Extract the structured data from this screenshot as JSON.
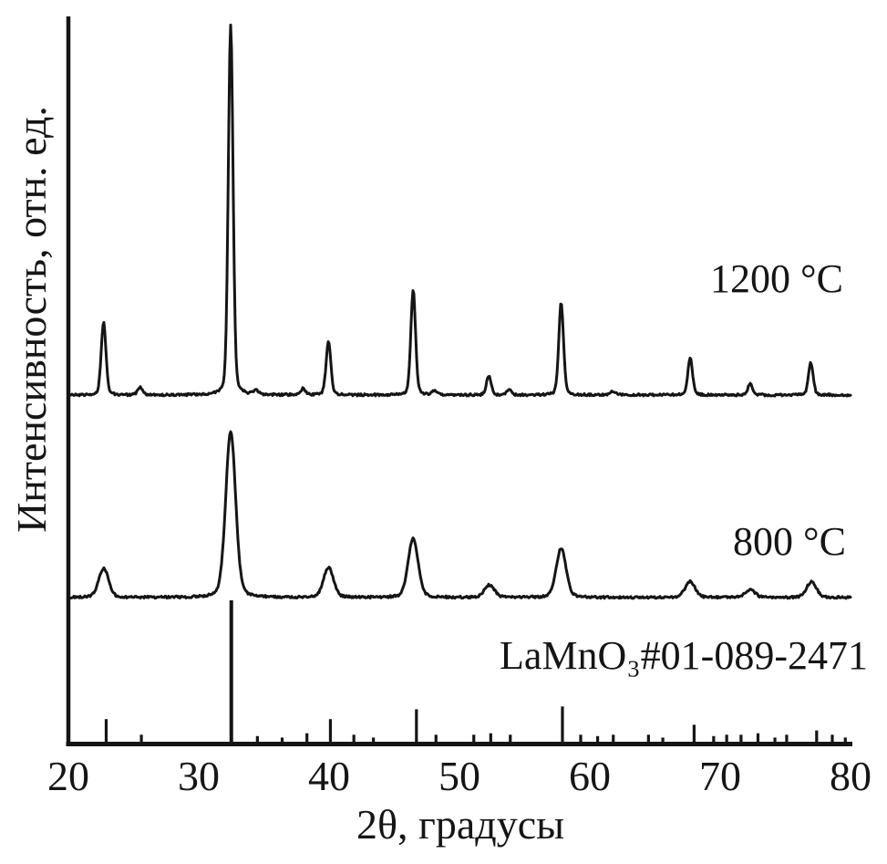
{
  "colors": {
    "background": "#ffffff",
    "ink": "#151515"
  },
  "chart_data": {
    "type": "line",
    "chart_kind": "xrd-powder-diffraction-patterns",
    "title": "",
    "xlabel": "2θ, градусы",
    "ylabel": "Интенсивность, отн. ед.",
    "legend_position": "none",
    "grid": false,
    "x_axis": {
      "min": 20,
      "max": 80,
      "tick_labels": [
        20,
        30,
        40,
        50,
        60,
        70,
        80
      ]
    },
    "y_axis": {
      "units": "отн. ед.",
      "tick_labels": []
    },
    "series": [
      {
        "name": "1200 °C",
        "label": "1200 °C",
        "fwhm_deg": 0.42,
        "intensity_scale": "relative, strongest peak = 1000",
        "peaks": [
          {
            "two_theta": 22.7,
            "intensity": 197
          },
          {
            "two_theta": 25.5,
            "intensity": 22
          },
          {
            "two_theta": 32.45,
            "intensity": 1000
          },
          {
            "two_theta": 34.4,
            "intensity": 12
          },
          {
            "two_theta": 38.0,
            "intensity": 17
          },
          {
            "two_theta": 39.95,
            "intensity": 143
          },
          {
            "two_theta": 46.45,
            "intensity": 283
          },
          {
            "two_theta": 48.1,
            "intensity": 12
          },
          {
            "two_theta": 52.25,
            "intensity": 52
          },
          {
            "two_theta": 53.8,
            "intensity": 15
          },
          {
            "two_theta": 57.8,
            "intensity": 249
          },
          {
            "two_theta": 61.8,
            "intensity": 10
          },
          {
            "two_theta": 67.7,
            "intensity": 99
          },
          {
            "two_theta": 72.3,
            "intensity": 30
          },
          {
            "two_theta": 76.95,
            "intensity": 86
          }
        ]
      },
      {
        "name": "800 °C",
        "label": "800 °C",
        "fwhm_deg": 0.88,
        "intensity_scale": "relative, strongest peak = 1000",
        "peaks": [
          {
            "two_theta": 22.7,
            "intensity": 79
          },
          {
            "two_theta": 32.45,
            "intensity": 448
          },
          {
            "two_theta": 39.95,
            "intensity": 81
          },
          {
            "two_theta": 46.45,
            "intensity": 160
          },
          {
            "two_theta": 52.3,
            "intensity": 34
          },
          {
            "two_theta": 57.8,
            "intensity": 133
          },
          {
            "two_theta": 67.7,
            "intensity": 44
          },
          {
            "two_theta": 72.3,
            "intensity": 20
          },
          {
            "two_theta": 77.0,
            "intensity": 42
          }
        ]
      }
    ],
    "reference": {
      "label": "LaMnO₃#01-089-2471",
      "intensity_scale": "percent of strongest reference line",
      "sticks": [
        {
          "two_theta": 22.9,
          "intensity": 16
        },
        {
          "two_theta": 25.6,
          "intensity": 5
        },
        {
          "two_theta": 32.5,
          "intensity": 100
        },
        {
          "two_theta": 34.5,
          "intensity": 4
        },
        {
          "two_theta": 36.4,
          "intensity": 3
        },
        {
          "two_theta": 38.3,
          "intensity": 6
        },
        {
          "two_theta": 40.1,
          "intensity": 16
        },
        {
          "two_theta": 41.9,
          "intensity": 5
        },
        {
          "two_theta": 43.4,
          "intensity": 3
        },
        {
          "two_theta": 46.7,
          "intensity": 23
        },
        {
          "two_theta": 48.2,
          "intensity": 5
        },
        {
          "two_theta": 51.1,
          "intensity": 5
        },
        {
          "two_theta": 52.4,
          "intensity": 6
        },
        {
          "two_theta": 53.9,
          "intensity": 5
        },
        {
          "two_theta": 57.9,
          "intensity": 25
        },
        {
          "two_theta": 59.3,
          "intensity": 5
        },
        {
          "two_theta": 60.6,
          "intensity": 4
        },
        {
          "two_theta": 61.8,
          "intensity": 5
        },
        {
          "two_theta": 64.5,
          "intensity": 5
        },
        {
          "two_theta": 65.6,
          "intensity": 3
        },
        {
          "two_theta": 68.0,
          "intensity": 12
        },
        {
          "two_theta": 69.5,
          "intensity": 4
        },
        {
          "two_theta": 70.5,
          "intensity": 5
        },
        {
          "two_theta": 71.6,
          "intensity": 5
        },
        {
          "two_theta": 72.9,
          "intensity": 6
        },
        {
          "two_theta": 74.2,
          "intensity": 3
        },
        {
          "two_theta": 75.1,
          "intensity": 5
        },
        {
          "two_theta": 77.4,
          "intensity": 8
        },
        {
          "two_theta": 78.6,
          "intensity": 5
        },
        {
          "two_theta": 79.6,
          "intensity": 3
        }
      ]
    }
  }
}
